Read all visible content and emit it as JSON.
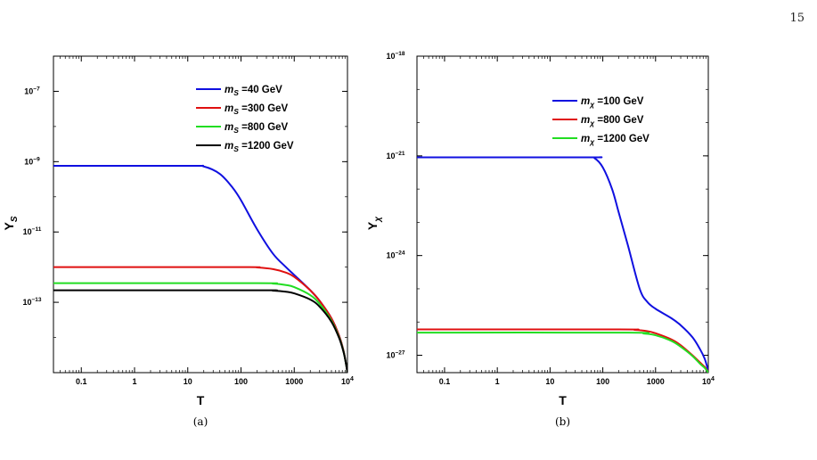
{
  "page": {
    "number": "15"
  },
  "chart_data": [
    {
      "type": "line",
      "caption": "(a)",
      "xlabel": "T",
      "ylabel": "Y",
      "ylabel_sub": "S",
      "x_scale": "log",
      "y_scale": "log",
      "xlim": [
        0.03,
        10000
      ],
      "ylim": [
        1e-15,
        1e-06
      ],
      "x_ticks": [
        {
          "value": 0.1,
          "label": "0.1"
        },
        {
          "value": 1,
          "label": "1"
        },
        {
          "value": 10,
          "label": "10"
        },
        {
          "value": 100,
          "label": "100"
        },
        {
          "value": 1000,
          "label": "1000"
        },
        {
          "value": 10000,
          "label": "10",
          "sup": "4"
        }
      ],
      "y_ticks": [
        {
          "value": 1e-07,
          "base": "10",
          "exp": "−7"
        },
        {
          "value": 1e-09,
          "base": "10",
          "exp": "−9"
        },
        {
          "value": 1e-11,
          "base": "10",
          "exp": "−11"
        },
        {
          "value": 1e-13,
          "base": "10",
          "exp": "−13"
        }
      ],
      "grid": false,
      "legend_position": "top-right",
      "series": [
        {
          "name": "m_S =40 GeV",
          "label_m": "m",
          "label_sub": "S",
          "label_rest": " =40 GeV",
          "color": "#1010e0",
          "x": [
            0.03,
            10,
            20,
            40,
            70,
            100,
            200,
            400,
            700,
            1000,
            2000,
            3000,
            5000,
            7000,
            8500,
            9500,
            10000
          ],
          "y": [
            7.6e-10,
            7.6e-10,
            7.3e-10,
            4.5e-10,
            1.8e-10,
            8e-11,
            1.2e-11,
            2.4e-12,
            1e-12,
            6e-13,
            2.2e-13,
            1.1e-13,
            3.5e-14,
            1.1e-14,
            4e-15,
            1.6e-15,
            1e-15
          ]
        },
        {
          "name": "m_S =300 GeV",
          "label_m": "m",
          "label_sub": "S",
          "label_rest": " =300 GeV",
          "color": "#e01010",
          "x": [
            0.03,
            100,
            200,
            400,
            700,
            1000,
            2000,
            3000,
            5000,
            7000,
            8500,
            9500,
            10000
          ],
          "y": [
            1e-12,
            1e-12,
            9.8e-13,
            8.8e-13,
            7e-13,
            5.3e-13,
            2.2e-13,
            1.1e-13,
            3.5e-14,
            1.1e-14,
            4e-15,
            1.6e-15,
            1e-15
          ]
        },
        {
          "name": "m_S =800 GeV",
          "label_m": "m",
          "label_sub": "S",
          "label_rest": " =800 GeV",
          "color": "#22dd22",
          "x": [
            0.03,
            200,
            400,
            700,
            1000,
            2000,
            3000,
            5000,
            7000,
            8500,
            9500,
            10000
          ],
          "y": [
            3.5e-13,
            3.5e-13,
            3.4e-13,
            3.1e-13,
            2.7e-13,
            1.6e-13,
            9e-14,
            3e-14,
            1e-14,
            3.8e-15,
            1.6e-15,
            1e-15
          ]
        },
        {
          "name": "m_S =1200 GeV",
          "label_m": "m",
          "label_sub": "S",
          "label_rest": " =1200 GeV",
          "color": "#000000",
          "x": [
            0.03,
            200,
            400,
            700,
            1000,
            2000,
            3000,
            5000,
            7000,
            8500,
            9500,
            10000
          ],
          "y": [
            2.2e-13,
            2.2e-13,
            2.15e-13,
            2e-13,
            1.8e-13,
            1.2e-13,
            7.5e-14,
            2.8e-14,
            9.5e-15,
            3.7e-15,
            1.6e-15,
            1e-15
          ]
        }
      ]
    },
    {
      "type": "line",
      "caption": "(b)",
      "xlabel": "T",
      "ylabel": "Y",
      "ylabel_sub": "χ",
      "x_scale": "log",
      "y_scale": "log",
      "xlim": [
        0.03,
        10000
      ],
      "ylim": [
        3e-28,
        1e-18
      ],
      "x_ticks": [
        {
          "value": 0.1,
          "label": "0.1"
        },
        {
          "value": 1,
          "label": "1"
        },
        {
          "value": 10,
          "label": "10"
        },
        {
          "value": 100,
          "label": "100"
        },
        {
          "value": 1000,
          "label": "1000"
        },
        {
          "value": 10000,
          "label": "10",
          "sup": "4"
        }
      ],
      "y_ticks": [
        {
          "value": 1e-18,
          "base": "10",
          "exp": "−18"
        },
        {
          "value": 1e-21,
          "base": "10",
          "exp": "−21"
        },
        {
          "value": 1e-24,
          "base": "10",
          "exp": "−24"
        },
        {
          "value": 1e-27,
          "base": "10",
          "exp": "−27"
        }
      ],
      "grid": false,
      "legend_position": "top-right",
      "series": [
        {
          "name": "m_χ =100 GeV",
          "label_m": "m",
          "label_sub": "χ",
          "label_rest": " =100 GeV",
          "color": "#1010e0",
          "x": [
            0.03,
            50,
            70,
            100,
            150,
            200,
            300,
            500,
            700,
            1000,
            2000,
            3000,
            5000,
            7000,
            8500,
            9500,
            10000
          ],
          "y": [
            9e-22,
            9e-22,
            8.5e-22,
            4.5e-22,
            1e-22,
            2e-23,
            2e-24,
            1e-25,
            4e-26,
            2.5e-26,
            1.3e-26,
            8e-27,
            3.5e-27,
            1.5e-27,
            8e-28,
            4.5e-28,
            3e-28
          ]
        },
        {
          "name": "m_χ =800 GeV",
          "label_m": "m",
          "label_sub": "χ",
          "label_rest": " =800 GeV",
          "color": "#e01010",
          "x": [
            0.03,
            200,
            400,
            700,
            1000,
            2000,
            3000,
            5000,
            7000,
            8500,
            9500,
            10000
          ],
          "y": [
            6e-27,
            6e-27,
            5.8e-27,
            5.3e-27,
            4.6e-27,
            3e-27,
            2e-27,
            1e-27,
            6e-28,
            4.5e-28,
            3.5e-28,
            3e-28
          ]
        },
        {
          "name": "m_χ =1200 GeV",
          "label_m": "m",
          "label_sub": "χ",
          "label_rest": " =1200 GeV",
          "color": "#22dd22",
          "x": [
            0.03,
            300,
            600,
            1000,
            2000,
            3000,
            5000,
            7000,
            8500,
            9500,
            10000
          ],
          "y": [
            4.8e-27,
            4.8e-27,
            4.5e-27,
            4e-27,
            2.7e-27,
            1.8e-27,
            9.5e-28,
            5.5e-28,
            4.2e-28,
            3.4e-28,
            3e-28
          ]
        }
      ]
    }
  ]
}
